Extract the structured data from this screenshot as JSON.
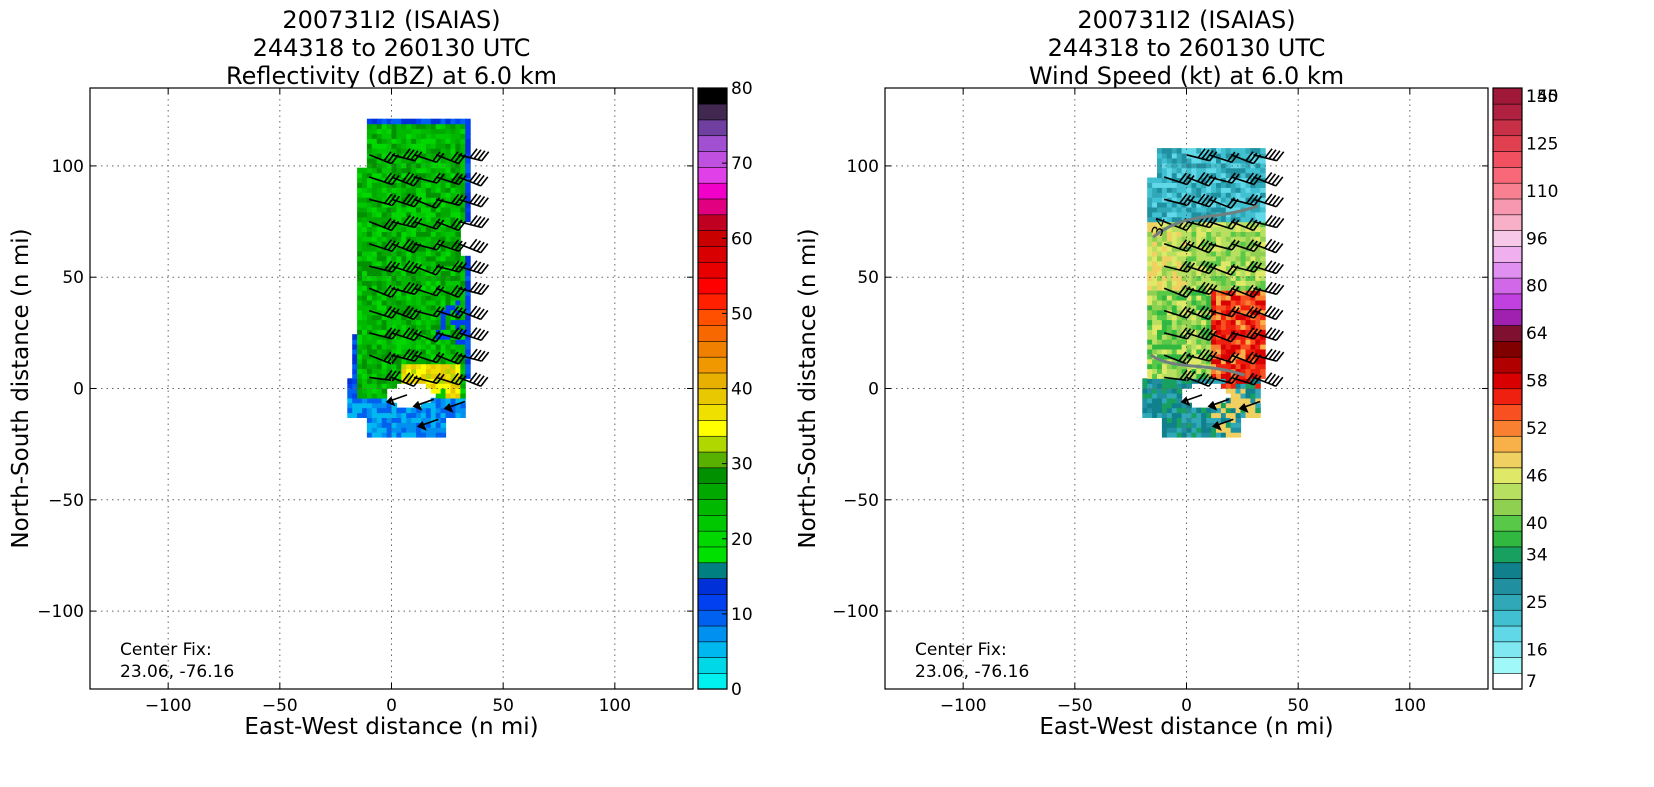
{
  "panels": [
    {
      "title": [
        "200731I2 (ISAIAS)",
        "244318 to 260130 UTC",
        "Reflectivity (dBZ) at 6.0 km"
      ],
      "xlabel": "East-West distance (n mi)",
      "ylabel": "North-South distance (n mi)",
      "center_fix": [
        "Center Fix:",
        "23.06, -76.16"
      ]
    },
    {
      "title": [
        "200731I2 (ISAIAS)",
        "244318 to 260130 UTC",
        "Wind Speed (kt) at 6.0 km"
      ],
      "xlabel": "East-West distance (n mi)",
      "ylabel": "North-South distance (n mi)",
      "center_fix": [
        "Center Fix:",
        "23.06, -76.16"
      ]
    }
  ],
  "chart_data": [
    {
      "type": "heatmap",
      "title": "200731I2 (ISAIAS) 244318 to 260130 UTC Reflectivity (dBZ) at 6.0 km",
      "xlabel": "East-West distance (n mi)",
      "ylabel": "North-South distance (n mi)",
      "xlim": [
        -135,
        135
      ],
      "ylim": [
        -135,
        135
      ],
      "xticks": [
        -100,
        -50,
        0,
        50,
        100
      ],
      "yticks": [
        -100,
        -50,
        0,
        50,
        100
      ],
      "grid": true,
      "colorbar": {
        "label_values": [
          0,
          10,
          20,
          30,
          40,
          50,
          60,
          70,
          80
        ],
        "min": 0,
        "max": 80,
        "colors": [
          "#00f0f0",
          "#00d8e8",
          "#00b8f0",
          "#0090f0",
          "#0060f0",
          "#0040f0",
          "#0030d8",
          "#008080",
          "#00e000",
          "#00d800",
          "#00c800",
          "#00b800",
          "#00a800",
          "#009000",
          "#58b000",
          "#b0d800",
          "#ffff00",
          "#f0e000",
          "#e8c800",
          "#e8b000",
          "#f09800",
          "#f08000",
          "#f86800",
          "#ff5000",
          "#ff2000",
          "#ff0000",
          "#e80000",
          "#d80000",
          "#c80000",
          "#c00020",
          "#e00080",
          "#f000c8",
          "#e040e8",
          "#c050e0",
          "#a050d0",
          "#7040a0",
          "#402850",
          "#000000"
        ]
      },
      "echo_region": {
        "x_range": [
          -20,
          37
        ],
        "y_range": [
          -20,
          121
        ],
        "center": [
          0,
          0
        ]
      },
      "annotations": [
        "Center Fix:",
        "23.06, -76.16"
      ]
    },
    {
      "type": "heatmap",
      "title": "200731I2 (ISAIAS) 244318 to 260130 UTC Wind Speed (kt) at 6.0 km",
      "xlabel": "East-West distance (n mi)",
      "ylabel": "North-South distance (n mi)",
      "xlim": [
        -135,
        135
      ],
      "ylim": [
        -135,
        135
      ],
      "xticks": [
        -100,
        -50,
        0,
        50,
        100
      ],
      "yticks": [
        -100,
        -50,
        0,
        50,
        100
      ],
      "grid": true,
      "colorbar": {
        "label_values": [
          7,
          16,
          25,
          34,
          40,
          46,
          52,
          58,
          64,
          80,
          96,
          110,
          125,
          140,
          155
        ],
        "colors": [
          "#ffffff",
          "#a0f8f8",
          "#80e8f0",
          "#60d8e8",
          "#40c0d0",
          "#30a8b8",
          "#2090a0",
          "#10808c",
          "#18a060",
          "#30b840",
          "#58c848",
          "#90d050",
          "#b8e060",
          "#e0e868",
          "#f0d060",
          "#f8b048",
          "#f88030",
          "#f85020",
          "#f02010",
          "#d80000",
          "#b00000",
          "#800000",
          "#801030",
          "#a020b0",
          "#c040e0",
          "#d068e8",
          "#e090f0",
          "#f0b0f0",
          "#f8c8e8",
          "#f8b0c8",
          "#f898b0",
          "#f88090",
          "#f86878",
          "#f05060",
          "#e04050",
          "#c83048",
          "#b02040",
          "#a01838"
        ]
      },
      "contour_labels": [
        "34"
      ],
      "annotations": [
        "Center Fix:",
        "23.06, -76.16"
      ]
    }
  ]
}
